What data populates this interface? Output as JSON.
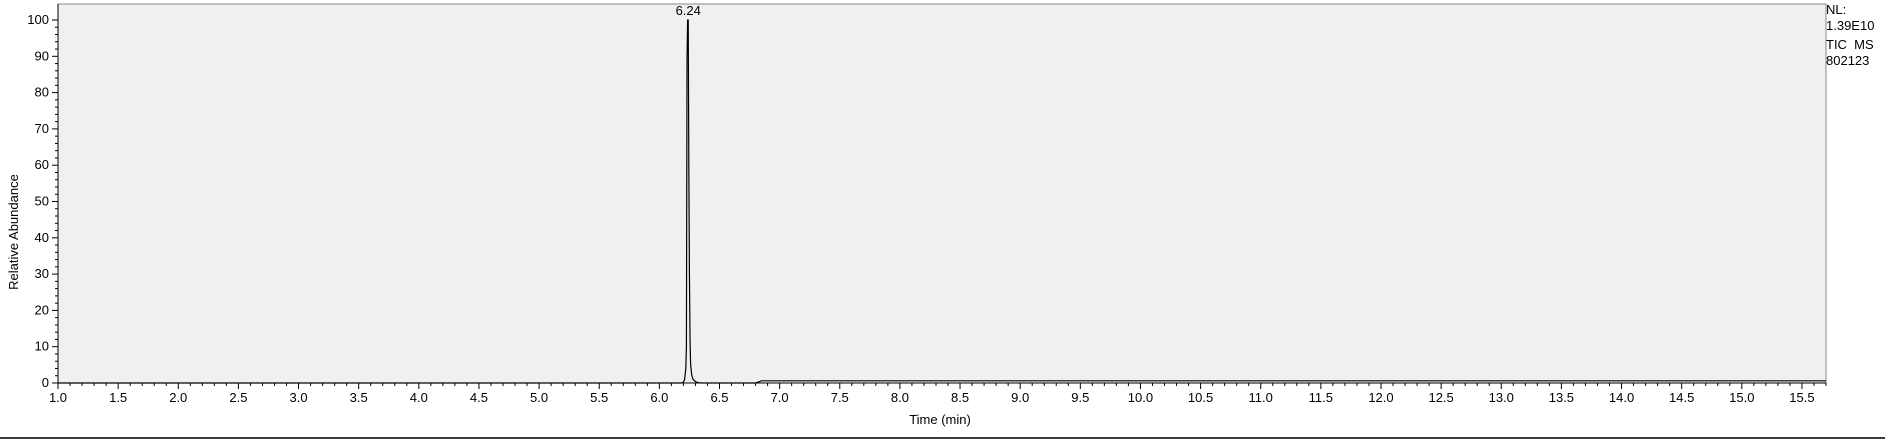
{
  "info": {
    "nl_label": "NL:",
    "nl_value": "1.39E10",
    "scan_filter": "TIC  MS",
    "sample": "802123"
  },
  "chart_data": {
    "type": "line",
    "title": "",
    "xlabel": "Time (min)",
    "ylabel": "Relative Abundance",
    "xlim": [
      1.0,
      15.7
    ],
    "ylim": [
      0,
      100
    ],
    "xticks": [
      "1.0",
      "1.5",
      "2.0",
      "2.5",
      "3.0",
      "3.5",
      "4.0",
      "4.5",
      "5.0",
      "5.5",
      "6.0",
      "6.5",
      "7.0",
      "7.5",
      "8.0",
      "8.5",
      "9.0",
      "9.5",
      "10.0",
      "10.5",
      "11.0",
      "11.5",
      "12.0",
      "12.5",
      "13.0",
      "13.5",
      "14.0",
      "14.5",
      "15.0",
      "15.5"
    ],
    "yticks": [
      "0",
      "10",
      "20",
      "30",
      "40",
      "50",
      "60",
      "70",
      "80",
      "90",
      "100"
    ],
    "peak_label": {
      "x": 6.24,
      "text": "6.24"
    },
    "series": [
      {
        "x": [
          1.0,
          6.18,
          6.2,
          6.21,
          6.22,
          6.225,
          6.23,
          6.235,
          6.24,
          6.245,
          6.25,
          6.255,
          6.26,
          6.27,
          6.28,
          6.3,
          6.32,
          6.35,
          6.8,
          6.85,
          15.7
        ],
        "y": [
          0,
          0,
          0.2,
          1,
          4,
          10,
          89,
          100,
          100,
          59,
          30,
          12,
          5,
          2,
          1,
          0.4,
          0.1,
          0,
          0,
          0.6,
          0.6
        ]
      }
    ],
    "grid": false,
    "background": "#f0f0f0",
    "line_color": "#000000"
  }
}
